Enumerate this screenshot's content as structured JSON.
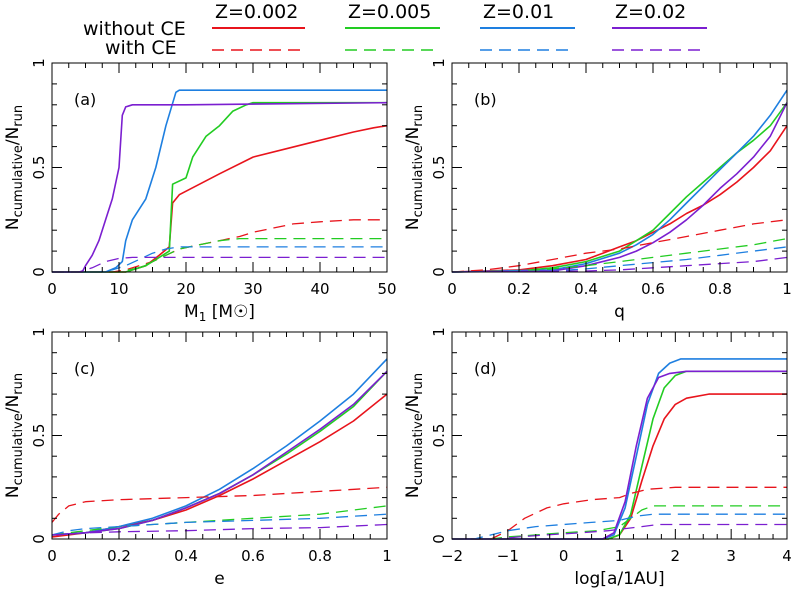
{
  "legend": {
    "row_labels": [
      "without CE",
      "with CE"
    ],
    "metallicities": [
      "Z=0.002",
      "Z=0.005",
      "Z=0.01",
      "Z=0.02"
    ],
    "colors": [
      "#e8141c",
      "#22cc22",
      "#1e7fe0",
      "#7b1fd0"
    ]
  },
  "chart_data": [
    {
      "type": "line",
      "panel": "(a)",
      "xlabel": "M1 [M☉]",
      "ylabel": "Ncumulative/Nrun",
      "xlim": [
        0,
        50
      ],
      "ylim": [
        0,
        1
      ],
      "xticks": [
        "0",
        "10",
        "20",
        "30",
        "40",
        "50"
      ],
      "yticks": [
        "0",
        "0.5",
        "1"
      ],
      "series": [
        {
          "name": "Z=0.002 without CE",
          "style": "solid",
          "x": [
            0,
            11,
            14,
            16,
            17.5,
            18,
            19,
            25,
            30,
            35,
            40,
            45,
            48,
            50
          ],
          "y": [
            0,
            0,
            0.03,
            0.08,
            0.12,
            0.33,
            0.37,
            0.47,
            0.55,
            0.59,
            0.63,
            0.67,
            0.69,
            0.7
          ]
        },
        {
          "name": "Z=0.005 without CE",
          "style": "solid",
          "x": [
            0,
            11,
            14,
            16,
            17.5,
            18,
            20,
            21,
            23,
            25,
            27,
            29,
            30,
            50
          ],
          "y": [
            0,
            0,
            0.03,
            0.07,
            0.1,
            0.42,
            0.45,
            0.55,
            0.65,
            0.7,
            0.77,
            0.8,
            0.81,
            0.81
          ]
        },
        {
          "name": "Z=0.01 without CE",
          "style": "solid",
          "x": [
            0,
            8,
            9.5,
            10.5,
            11,
            12,
            14,
            15.5,
            17,
            18.5,
            19,
            30,
            50
          ],
          "y": [
            0,
            0,
            0.02,
            0.05,
            0.15,
            0.25,
            0.35,
            0.5,
            0.7,
            0.86,
            0.87,
            0.87,
            0.87
          ]
        },
        {
          "name": "Z=0.02 without CE",
          "style": "solid",
          "x": [
            0,
            4.5,
            5,
            6,
            7,
            8,
            9,
            10,
            10.5,
            11,
            12,
            20,
            50
          ],
          "y": [
            0,
            0,
            0.03,
            0.08,
            0.15,
            0.25,
            0.35,
            0.5,
            0.75,
            0.79,
            0.8,
            0.8,
            0.81
          ]
        },
        {
          "name": "Z=0.002 with CE",
          "style": "dashed",
          "x": [
            0,
            9,
            11,
            13,
            15,
            17,
            19,
            22,
            25,
            28,
            30,
            33,
            36,
            40,
            45,
            50
          ],
          "y": [
            0,
            0,
            0.01,
            0.03,
            0.05,
            0.08,
            0.11,
            0.13,
            0.15,
            0.17,
            0.19,
            0.21,
            0.23,
            0.24,
            0.25,
            0.25
          ]
        },
        {
          "name": "Z=0.005 with CE",
          "style": "dashed",
          "x": [
            0,
            10,
            13,
            15,
            17,
            19,
            22,
            25,
            28,
            31,
            50
          ],
          "y": [
            0,
            0,
            0.02,
            0.05,
            0.08,
            0.11,
            0.13,
            0.15,
            0.16,
            0.16,
            0.16
          ]
        },
        {
          "name": "Z=0.01 with CE",
          "style": "dashed",
          "x": [
            0,
            7,
            9,
            11,
            13,
            15,
            17,
            19,
            25,
            50
          ],
          "y": [
            0,
            0,
            0.01,
            0.03,
            0.06,
            0.09,
            0.11,
            0.12,
            0.12,
            0.12
          ]
        },
        {
          "name": "Z=0.02 with CE",
          "style": "dashed",
          "x": [
            0,
            4,
            6,
            8,
            10,
            12,
            50
          ],
          "y": [
            0,
            0,
            0.02,
            0.05,
            0.065,
            0.07,
            0.07
          ]
        }
      ]
    },
    {
      "type": "line",
      "panel": "(b)",
      "xlabel": "q",
      "ylabel": "Ncumulative/Nrun",
      "xlim": [
        0,
        1
      ],
      "ylim": [
        0,
        1
      ],
      "xticks": [
        "0",
        "0.2",
        "0.4",
        "0.6",
        "0.8",
        "1"
      ],
      "yticks": [
        "0",
        "0.5",
        "1"
      ],
      "series": [
        {
          "name": "Z=0.002 without CE",
          "style": "solid",
          "x": [
            0,
            0.2,
            0.3,
            0.4,
            0.45,
            0.5,
            0.55,
            0.6,
            0.65,
            0.7,
            0.75,
            0.8,
            0.85,
            0.9,
            0.95,
            1
          ],
          "y": [
            0,
            0.01,
            0.03,
            0.06,
            0.09,
            0.12,
            0.15,
            0.19,
            0.23,
            0.28,
            0.32,
            0.37,
            0.43,
            0.5,
            0.58,
            0.7
          ]
        },
        {
          "name": "Z=0.005 without CE",
          "style": "solid",
          "x": [
            0,
            0.2,
            0.3,
            0.4,
            0.5,
            0.55,
            0.6,
            0.65,
            0.7,
            0.75,
            0.8,
            0.85,
            0.9,
            0.95,
            1
          ],
          "y": [
            0,
            0.005,
            0.02,
            0.05,
            0.1,
            0.15,
            0.2,
            0.28,
            0.36,
            0.43,
            0.5,
            0.57,
            0.63,
            0.7,
            0.81
          ]
        },
        {
          "name": "Z=0.01 without CE",
          "style": "solid",
          "x": [
            0,
            0.3,
            0.4,
            0.5,
            0.55,
            0.6,
            0.65,
            0.7,
            0.75,
            0.8,
            0.85,
            0.9,
            0.95,
            1
          ],
          "y": [
            0,
            0.01,
            0.04,
            0.09,
            0.13,
            0.18,
            0.25,
            0.33,
            0.41,
            0.49,
            0.57,
            0.65,
            0.75,
            0.87
          ]
        },
        {
          "name": "Z=0.02 without CE",
          "style": "solid",
          "x": [
            0,
            0.3,
            0.4,
            0.5,
            0.55,
            0.6,
            0.65,
            0.7,
            0.75,
            0.8,
            0.85,
            0.9,
            0.95,
            1
          ],
          "y": [
            0,
            0.005,
            0.03,
            0.07,
            0.1,
            0.14,
            0.19,
            0.25,
            0.32,
            0.4,
            0.47,
            0.55,
            0.65,
            0.81
          ]
        },
        {
          "name": "Z=0.002 with CE",
          "style": "dashed",
          "x": [
            0,
            0.1,
            0.2,
            0.3,
            0.4,
            0.5,
            0.6,
            0.7,
            0.8,
            0.9,
            1
          ],
          "y": [
            0,
            0.01,
            0.03,
            0.06,
            0.09,
            0.11,
            0.14,
            0.17,
            0.2,
            0.23,
            0.25
          ]
        },
        {
          "name": "Z=0.005 with CE",
          "style": "dashed",
          "x": [
            0,
            0.2,
            0.3,
            0.4,
            0.5,
            0.6,
            0.7,
            0.8,
            0.9,
            1
          ],
          "y": [
            0,
            0.005,
            0.015,
            0.03,
            0.05,
            0.07,
            0.09,
            0.11,
            0.13,
            0.16
          ]
        },
        {
          "name": "Z=0.01 with CE",
          "style": "dashed",
          "x": [
            0,
            0.3,
            0.4,
            0.5,
            0.6,
            0.7,
            0.8,
            0.9,
            1
          ],
          "y": [
            0,
            0.005,
            0.015,
            0.03,
            0.045,
            0.06,
            0.08,
            0.1,
            0.12
          ]
        },
        {
          "name": "Z=0.02 with CE",
          "style": "dashed",
          "x": [
            0,
            0.4,
            0.5,
            0.6,
            0.7,
            0.8,
            0.9,
            1
          ],
          "y": [
            0,
            0.005,
            0.01,
            0.02,
            0.03,
            0.04,
            0.05,
            0.07
          ]
        }
      ]
    },
    {
      "type": "line",
      "panel": "(c)",
      "xlabel": "e",
      "ylabel": "Ncumulative/Nrun",
      "xlim": [
        0,
        1
      ],
      "ylim": [
        0,
        1
      ],
      "xticks": [
        "0",
        "0.2",
        "0.4",
        "0.6",
        "0.8",
        "1"
      ],
      "yticks": [
        "0",
        "0.5",
        "1"
      ],
      "series": [
        {
          "name": "Z=0.002 without CE",
          "style": "solid",
          "x": [
            0,
            0.1,
            0.2,
            0.3,
            0.4,
            0.5,
            0.6,
            0.7,
            0.8,
            0.9,
            1
          ],
          "y": [
            0.01,
            0.03,
            0.06,
            0.09,
            0.14,
            0.21,
            0.29,
            0.38,
            0.47,
            0.57,
            0.7
          ]
        },
        {
          "name": "Z=0.005 without CE",
          "style": "solid",
          "x": [
            0,
            0.1,
            0.2,
            0.3,
            0.4,
            0.5,
            0.6,
            0.7,
            0.8,
            0.9,
            1
          ],
          "y": [
            0.02,
            0.03,
            0.05,
            0.09,
            0.15,
            0.22,
            0.31,
            0.41,
            0.52,
            0.64,
            0.81
          ]
        },
        {
          "name": "Z=0.01 without CE",
          "style": "solid",
          "x": [
            0,
            0.1,
            0.2,
            0.3,
            0.4,
            0.5,
            0.6,
            0.7,
            0.8,
            0.9,
            1
          ],
          "y": [
            0.02,
            0.03,
            0.06,
            0.1,
            0.16,
            0.24,
            0.34,
            0.45,
            0.57,
            0.7,
            0.87
          ]
        },
        {
          "name": "Z=0.02 without CE",
          "style": "solid",
          "x": [
            0,
            0.1,
            0.2,
            0.3,
            0.4,
            0.5,
            0.6,
            0.7,
            0.8,
            0.9,
            1
          ],
          "y": [
            0.02,
            0.03,
            0.05,
            0.09,
            0.15,
            0.22,
            0.31,
            0.42,
            0.53,
            0.65,
            0.81
          ]
        },
        {
          "name": "Z=0.002 with CE",
          "style": "dashed",
          "x": [
            0,
            0.02,
            0.05,
            0.1,
            0.2,
            0.4,
            0.6,
            0.8,
            1
          ],
          "y": [
            0.08,
            0.12,
            0.16,
            0.18,
            0.19,
            0.2,
            0.21,
            0.23,
            0.25
          ]
        },
        {
          "name": "Z=0.005 with CE",
          "style": "dashed",
          "x": [
            0,
            0.1,
            0.2,
            0.4,
            0.6,
            0.8,
            1
          ],
          "y": [
            0.02,
            0.04,
            0.06,
            0.08,
            0.1,
            0.12,
            0.16
          ]
        },
        {
          "name": "Z=0.01 with CE",
          "style": "dashed",
          "x": [
            0,
            0.05,
            0.1,
            0.2,
            0.4,
            0.6,
            0.8,
            1
          ],
          "y": [
            0.02,
            0.04,
            0.05,
            0.06,
            0.08,
            0.09,
            0.1,
            0.12
          ]
        },
        {
          "name": "Z=0.02 with CE",
          "style": "dashed",
          "x": [
            0,
            0.1,
            0.2,
            0.4,
            0.6,
            0.8,
            1
          ],
          "y": [
            0.02,
            0.03,
            0.035,
            0.04,
            0.05,
            0.055,
            0.07
          ]
        }
      ]
    },
    {
      "type": "line",
      "panel": "(d)",
      "xlabel": "log[a/1AU]",
      "ylabel": "Ncumulative/Nrun",
      "xlim": [
        -2,
        4
      ],
      "ylim": [
        0,
        1
      ],
      "xticks": [
        "−2",
        "−1",
        "0",
        "1",
        "2",
        "3",
        "4"
      ],
      "yticks": [
        "0",
        "0.5",
        "1"
      ],
      "series": [
        {
          "name": "Z=0.002 without CE",
          "style": "solid",
          "x": [
            -2,
            0.8,
            1.0,
            1.2,
            1.4,
            1.6,
            1.8,
            2.0,
            2.2,
            2.6,
            3,
            4
          ],
          "y": [
            0,
            0,
            0.02,
            0.1,
            0.28,
            0.45,
            0.58,
            0.65,
            0.68,
            0.7,
            0.7,
            0.7
          ]
        },
        {
          "name": "Z=0.005 without CE",
          "style": "solid",
          "x": [
            -2,
            0.8,
            1.0,
            1.2,
            1.4,
            1.6,
            1.8,
            2.0,
            2.2,
            2.5,
            4
          ],
          "y": [
            0,
            0,
            0.02,
            0.12,
            0.35,
            0.58,
            0.73,
            0.79,
            0.81,
            0.81,
            0.81
          ]
        },
        {
          "name": "Z=0.01 without CE",
          "style": "solid",
          "x": [
            -2,
            0.7,
            0.9,
            1.1,
            1.3,
            1.5,
            1.7,
            1.9,
            2.1,
            2.4,
            4
          ],
          "y": [
            0,
            0,
            0.02,
            0.15,
            0.4,
            0.65,
            0.8,
            0.85,
            0.87,
            0.87,
            0.87
          ]
        },
        {
          "name": "Z=0.02 without CE",
          "style": "solid",
          "x": [
            -2,
            0.7,
            0.9,
            1.1,
            1.3,
            1.5,
            1.7,
            1.9,
            2.2,
            4
          ],
          "y": [
            0,
            0,
            0.03,
            0.18,
            0.45,
            0.68,
            0.78,
            0.8,
            0.81,
            0.81
          ]
        },
        {
          "name": "Z=0.002 with CE",
          "style": "dashed",
          "x": [
            -2,
            -1.3,
            -1.0,
            -0.7,
            -0.3,
            0,
            0.5,
            1.0,
            1.2,
            1.5,
            2,
            4
          ],
          "y": [
            0,
            0,
            0.04,
            0.1,
            0.15,
            0.17,
            0.19,
            0.2,
            0.22,
            0.24,
            0.25,
            0.25
          ]
        },
        {
          "name": "Z=0.005 with CE",
          "style": "dashed",
          "x": [
            -2,
            -1.3,
            -1.0,
            -0.5,
            0,
            0.6,
            1.0,
            1.2,
            1.4,
            1.6,
            2,
            4
          ],
          "y": [
            0,
            0,
            0.01,
            0.02,
            0.03,
            0.04,
            0.06,
            0.1,
            0.14,
            0.16,
            0.16,
            0.16
          ]
        },
        {
          "name": "Z=0.01 with CE",
          "style": "dashed",
          "x": [
            -2,
            -1.6,
            -1.3,
            -1.0,
            -0.5,
            0,
            0.5,
            1.0,
            1.3,
            1.6,
            2,
            4
          ],
          "y": [
            0,
            0,
            0.02,
            0.04,
            0.06,
            0.07,
            0.08,
            0.09,
            0.11,
            0.12,
            0.12,
            0.12
          ]
        },
        {
          "name": "Z=0.02 with CE",
          "style": "dashed",
          "x": [
            -2,
            -1.2,
            -0.8,
            -0.3,
            0.3,
            0.8,
            1.1,
            1.4,
            1.7,
            2,
            4
          ],
          "y": [
            0,
            0,
            0.01,
            0.02,
            0.03,
            0.04,
            0.05,
            0.06,
            0.07,
            0.07,
            0.07
          ]
        }
      ]
    }
  ]
}
